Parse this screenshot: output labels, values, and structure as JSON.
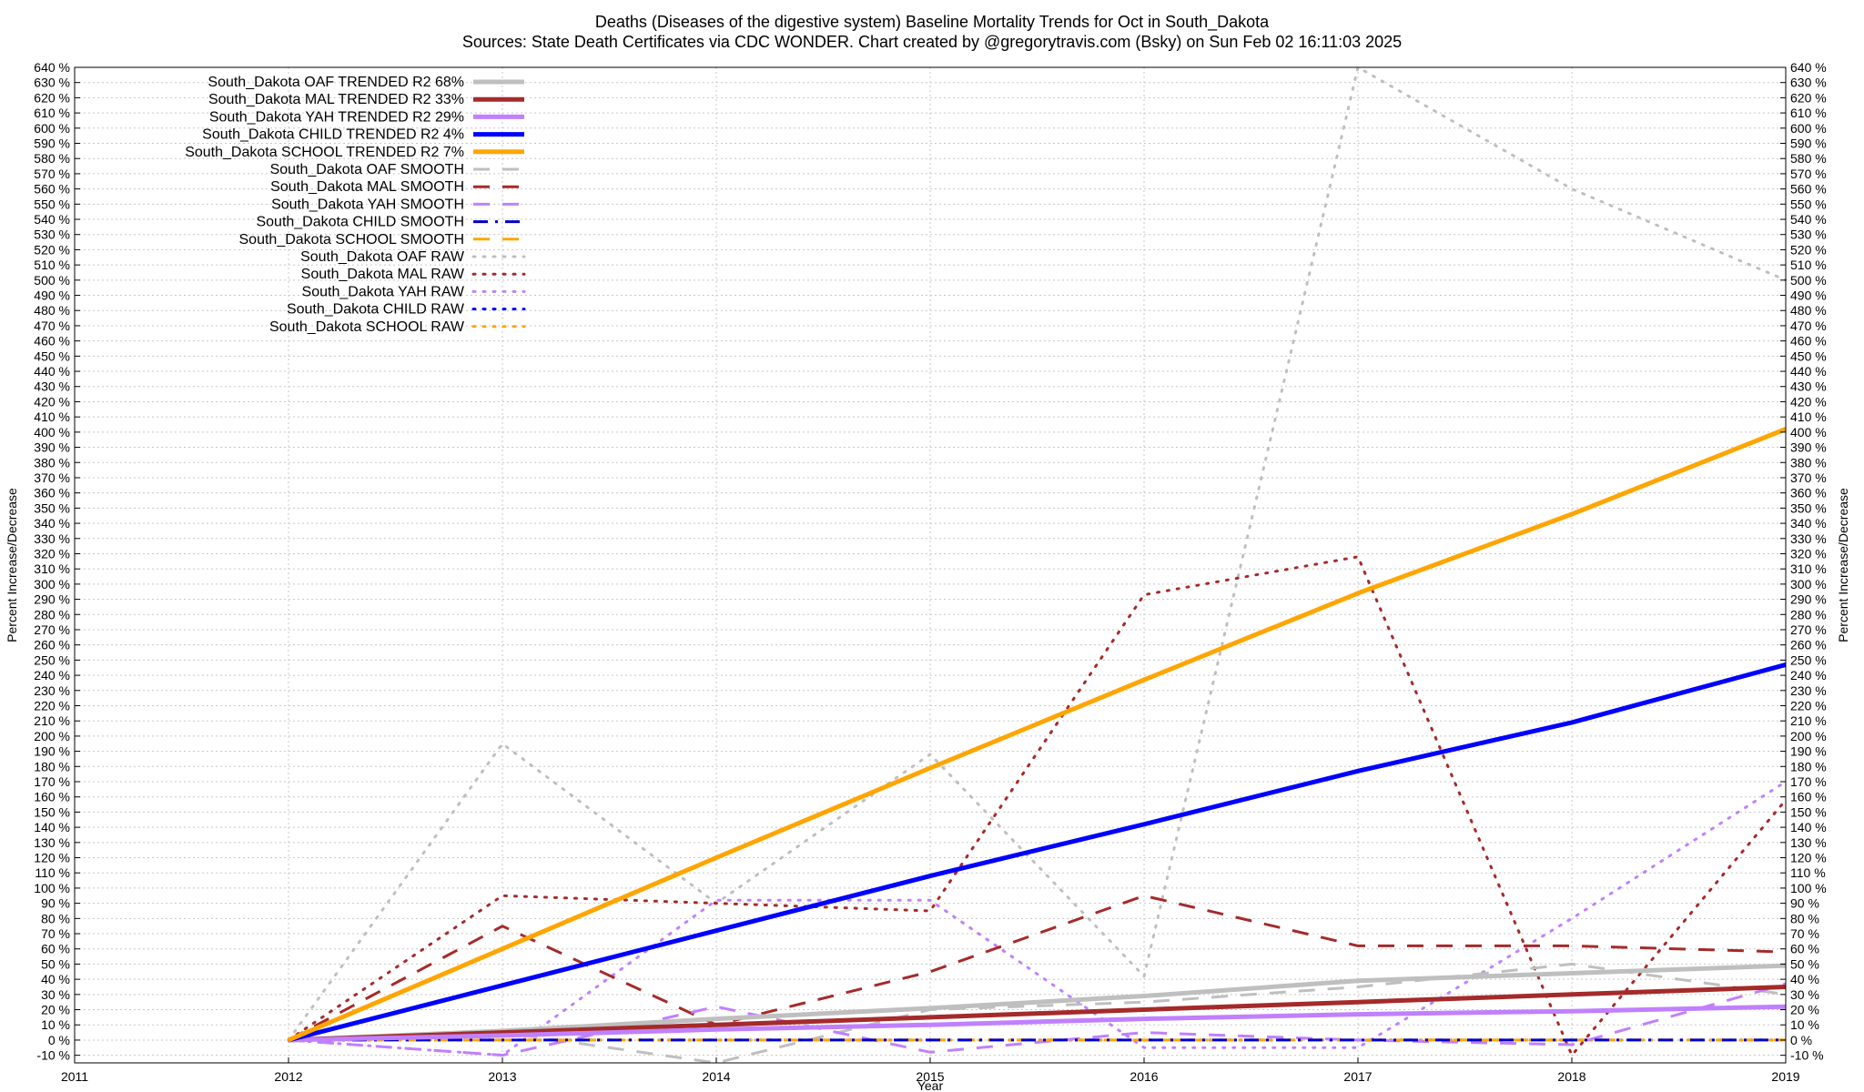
{
  "chart_data": {
    "type": "line",
    "title_line1": "Deaths (Diseases of the digestive system)  Baseline Mortality Trends for Oct in South_Dakota",
    "title_line2": "Sources: State Death Certificates via CDC WONDER.              Chart created by @gregorytravis.com (Bsky) on Sun Feb 02 16:11:03 2025",
    "xlabel": "Year",
    "ylabel_left": "Percent Increase/Decrease",
    "ylabel_right": "Percent Increase/Decrease",
    "xlim": [
      2011,
      2019
    ],
    "ylim": [
      -15,
      640
    ],
    "x_ticks": [
      2011,
      2012,
      2013,
      2014,
      2015,
      2016,
      2017,
      2018,
      2019
    ],
    "y_tick_start": -10,
    "y_tick_end": 640,
    "y_tick_step": 10,
    "y_tick_suffix": " %",
    "grid": true,
    "legend_position": "top-left",
    "series": [
      {
        "name": "South_Dakota OAF TRENDED R2  68%",
        "color": "#bfbfbf",
        "style": "solid",
        "x": [
          2012,
          2013,
          2014,
          2015,
          2016,
          2017,
          2018,
          2019
        ],
        "values": [
          0,
          6,
          14,
          21,
          29,
          39,
          44,
          49
        ]
      },
      {
        "name": "South_Dakota MAL TRENDED R2  33%",
        "color": "#a52a2a",
        "style": "solid",
        "x": [
          2012,
          2013,
          2014,
          2015,
          2016,
          2017,
          2018,
          2019
        ],
        "values": [
          0,
          5,
          10,
          15,
          20,
          25,
          30,
          35
        ]
      },
      {
        "name": "South_Dakota YAH TRENDED R2  29%",
        "color": "#c080ff",
        "style": "solid",
        "x": [
          2012,
          2013,
          2014,
          2015,
          2016,
          2017,
          2018,
          2019
        ],
        "values": [
          0,
          3,
          7,
          10,
          14,
          17,
          19,
          22
        ]
      },
      {
        "name": "South_Dakota CHILD TRENDED R2   4%",
        "color": "#0000ff",
        "style": "solid",
        "x": [
          2012,
          2013,
          2014,
          2015,
          2016,
          2017,
          2018,
          2019
        ],
        "values": [
          0,
          36,
          72,
          108,
          142,
          177,
          209,
          247
        ]
      },
      {
        "name": "South_Dakota SCHOOL TRENDED R2   7%",
        "color": "#ffa500",
        "style": "solid",
        "x": [
          2012,
          2013,
          2014,
          2015,
          2016,
          2017,
          2018,
          2019
        ],
        "values": [
          0,
          60,
          120,
          179,
          237,
          294,
          346,
          402
        ]
      },
      {
        "name": "South_Dakota OAF SMOOTH",
        "color": "#bfbfbf",
        "style": "dashed",
        "x": [
          2012,
          2013,
          2014,
          2015,
          2016,
          2017,
          2018,
          2019
        ],
        "values": [
          0,
          5,
          -15,
          20,
          25,
          35,
          50,
          30
        ]
      },
      {
        "name": "South_Dakota MAL SMOOTH",
        "color": "#a52a2a",
        "style": "dashed",
        "x": [
          2012,
          2013,
          2014,
          2015,
          2016,
          2017,
          2018,
          2019
        ],
        "values": [
          0,
          75,
          10,
          45,
          95,
          62,
          62,
          58
        ]
      },
      {
        "name": "South_Dakota YAH SMOOTH",
        "color": "#c080ff",
        "style": "dashed",
        "x": [
          2012,
          2013,
          2014,
          2015,
          2016,
          2017,
          2018,
          2019
        ],
        "values": [
          0,
          -10,
          22,
          -8,
          5,
          0,
          -3,
          37
        ]
      },
      {
        "name": "South_Dakota CHILD SMOOTH",
        "color": "#0000cc",
        "style": "dashdot",
        "x": [
          2012,
          2013,
          2014,
          2015,
          2016,
          2017,
          2018,
          2019
        ],
        "values": [
          0,
          0,
          0,
          0,
          0,
          0,
          0,
          0
        ]
      },
      {
        "name": "South_Dakota SCHOOL SMOOTH",
        "color": "#ffa500",
        "style": "dashed",
        "x": [
          2012,
          2013,
          2014,
          2015,
          2016,
          2017,
          2018,
          2019
        ],
        "values": [
          0,
          0,
          0,
          0,
          0,
          0,
          0,
          0
        ]
      },
      {
        "name": "South_Dakota OAF RAW",
        "color": "#bfbfbf",
        "style": "dotted",
        "x": [
          2012,
          2013,
          2014,
          2015,
          2016,
          2017,
          2018,
          2019
        ],
        "values": [
          0,
          195,
          90,
          188,
          42,
          640,
          560,
          500
        ]
      },
      {
        "name": "South_Dakota MAL RAW",
        "color": "#a52a2a",
        "style": "dotted",
        "x": [
          2012,
          2013,
          2014,
          2015,
          2016,
          2017,
          2018,
          2019
        ],
        "values": [
          0,
          95,
          90,
          85,
          293,
          318,
          -10,
          158
        ]
      },
      {
        "name": "South_Dakota YAH RAW",
        "color": "#c080ff",
        "style": "dotted",
        "x": [
          2012,
          2013,
          2014,
          2015,
          2016,
          2017,
          2018,
          2019
        ],
        "values": [
          0,
          -10,
          92,
          92,
          -5,
          -5,
          80,
          170
        ]
      },
      {
        "name": "South_Dakota CHILD RAW",
        "color": "#0000ff",
        "style": "dotted",
        "x": [
          2012,
          2013,
          2014,
          2015,
          2016,
          2017,
          2018,
          2019
        ],
        "values": [
          0,
          0,
          0,
          0,
          0,
          0,
          0,
          0
        ]
      },
      {
        "name": "South_Dakota SCHOOL RAW",
        "color": "#ffa500",
        "style": "dotted",
        "x": [
          2012,
          2013,
          2014,
          2015,
          2016,
          2017,
          2018,
          2019
        ],
        "values": [
          0,
          0,
          0,
          0,
          0,
          0,
          0,
          0
        ]
      }
    ]
  }
}
